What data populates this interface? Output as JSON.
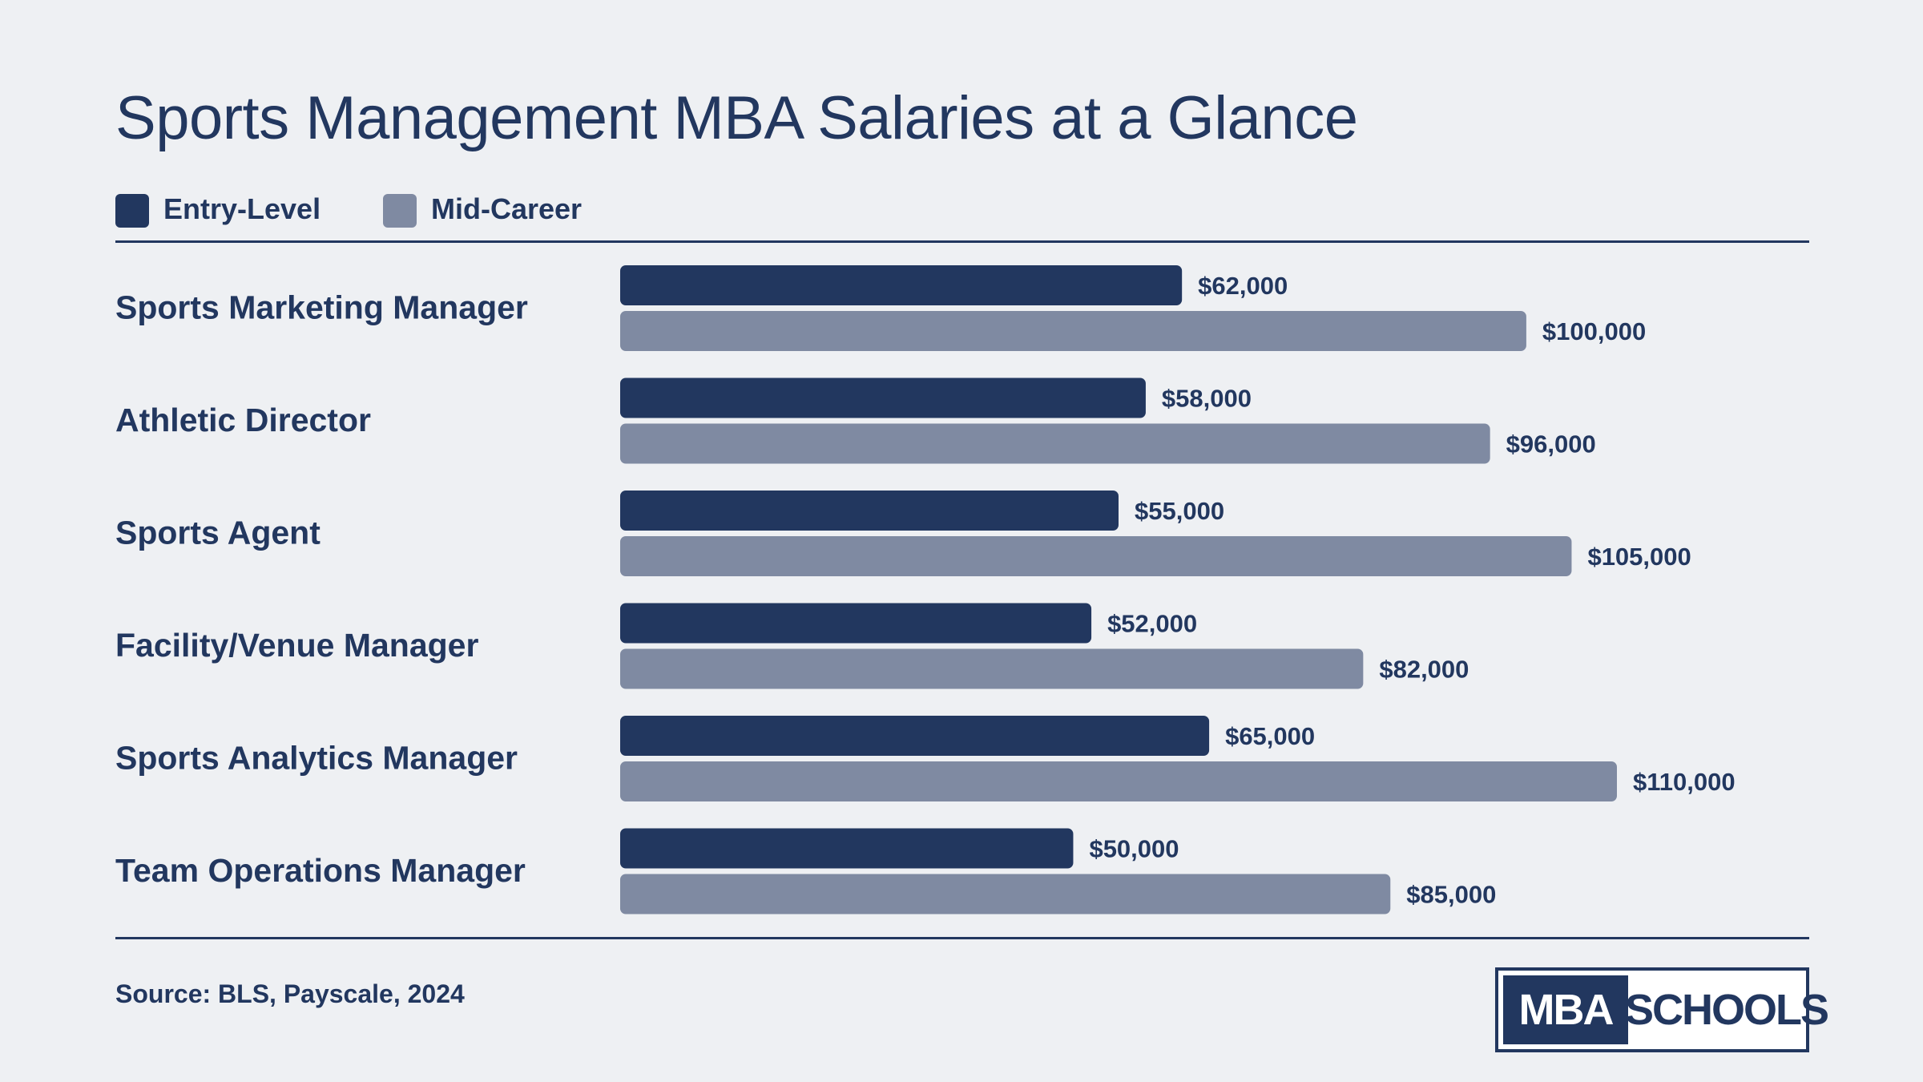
{
  "colors": {
    "background": "#eef0f3",
    "text": "#22375f",
    "entry_level": "#22375f",
    "mid_career": "#7f8aa2"
  },
  "chart_data": {
    "type": "bar",
    "orientation": "horizontal",
    "title": "Sports Management MBA Salaries at a Glance",
    "categories": [
      "Sports Marketing Manager",
      "Athletic Director",
      "Sports Agent",
      "Facility/Venue Manager",
      "Sports Analytics Manager",
      "Team Operations Manager"
    ],
    "series": [
      {
        "name": "Entry-Level",
        "color": "#22375f",
        "values": [
          62000,
          58000,
          55000,
          52000,
          65000,
          50000
        ],
        "labels": [
          "$62,000",
          "$58,000",
          "$55,000",
          "$52,000",
          "$65,000",
          "$50,000"
        ]
      },
      {
        "name": "Mid-Career",
        "color": "#7f8aa2",
        "values": [
          100000,
          96000,
          105000,
          82000,
          110000,
          85000
        ],
        "labels": [
          "$100,000",
          "$96,000",
          "$105,000",
          "$82,000",
          "$110,000",
          "$85,000"
        ]
      }
    ],
    "xlim": [
      0,
      110000
    ],
    "grid": false,
    "legend_position": "top-left"
  },
  "footer": {
    "source": "Source: BLS, Payscale, 2024",
    "logo_left": "MBA",
    "logo_right": "SCHOOLS"
  }
}
